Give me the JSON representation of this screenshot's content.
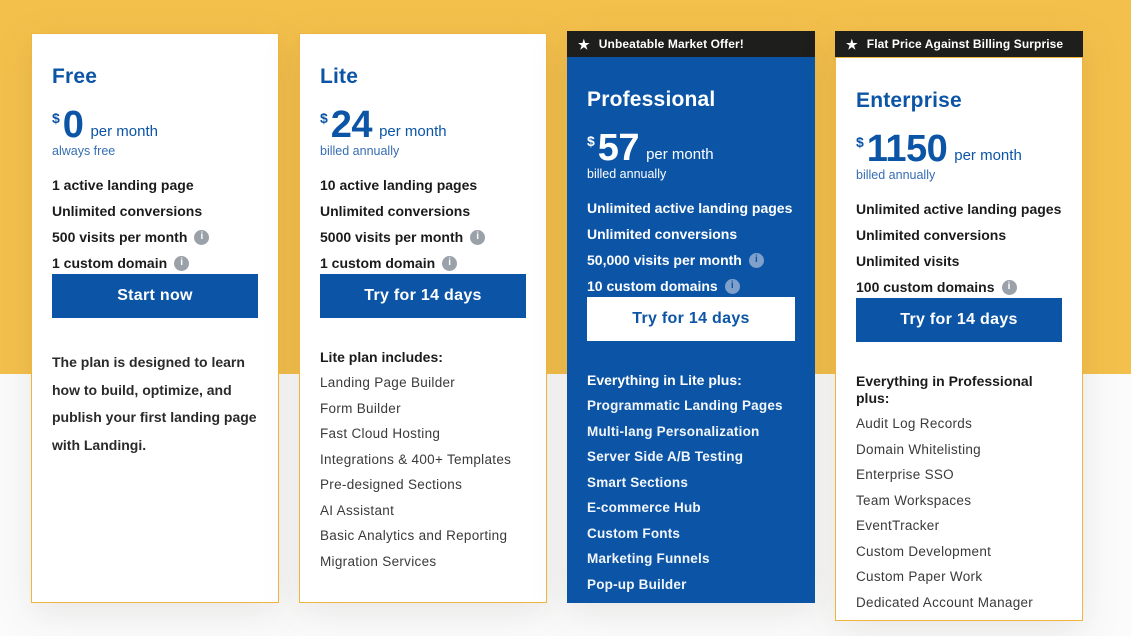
{
  "colors": {
    "band_yellow": "#F4C04C",
    "brand_blue": "#0C55A6",
    "card_border": "#EFB53E",
    "ribbon_bg": "#1E1E1C",
    "note_blue": "#366EB2"
  },
  "plans": [
    {
      "name": "Free",
      "ribbon": "",
      "currency": "$",
      "amount": "0",
      "period": "per month",
      "billing_note": "always free",
      "features": [
        {
          "text": "1 active landing page",
          "info": false
        },
        {
          "text": "Unlimited conversions",
          "info": false
        },
        {
          "text": "500 visits per month",
          "info": true
        },
        {
          "text": "1 custom domain",
          "info": true
        }
      ],
      "cta": "Start now",
      "description": "The plan is designed to learn how to build, optimize, and publish your first landing page with Landingi.",
      "details_heading": "",
      "details": []
    },
    {
      "name": "Lite",
      "ribbon": "",
      "currency": "$",
      "amount": "24",
      "period": "per month",
      "billing_note": "billed annually",
      "features": [
        {
          "text": "10 active landing pages",
          "info": false
        },
        {
          "text": "Unlimited conversions",
          "info": false
        },
        {
          "text": "5000 visits per month",
          "info": true
        },
        {
          "text": "1 custom domain",
          "info": true
        }
      ],
      "cta": "Try for 14 days",
      "description": "",
      "details_heading": "Lite plan includes:",
      "details": [
        "Landing Page Builder",
        "Form Builder",
        "Fast Cloud Hosting",
        "Integrations & 400+ Templates",
        "Pre-designed Sections",
        "AI Assistant",
        "Basic Analytics and Reporting",
        "Migration Services"
      ]
    },
    {
      "name": "Professional",
      "ribbon": "Unbeatable Market Offer!",
      "currency": "$",
      "amount": "57",
      "period": "per month",
      "billing_note": "billed annually",
      "features": [
        {
          "text": "Unlimited active landing pages",
          "info": false
        },
        {
          "text": "Unlimited conversions",
          "info": false
        },
        {
          "text": "50,000 visits per month",
          "info": true
        },
        {
          "text": "10 custom domains",
          "info": true
        }
      ],
      "cta": "Try for 14 days",
      "description": "",
      "details_heading": "Everything in Lite plus:",
      "details": [
        "Programmatic Landing Pages",
        "Multi-lang Personalization",
        "Server Side A/B Testing",
        "Smart Sections",
        "E-commerce Hub",
        "Custom Fonts",
        "Marketing Funnels",
        "Pop-up Builder"
      ]
    },
    {
      "name": "Enterprise",
      "ribbon": "Flat Price Against Billing Surprise",
      "currency": "$",
      "amount": "1150",
      "period": "per month",
      "billing_note": "billed annually",
      "features": [
        {
          "text": "Unlimited active landing pages",
          "info": false
        },
        {
          "text": "Unlimited conversions",
          "info": false
        },
        {
          "text": "Unlimited visits",
          "info": false
        },
        {
          "text": "100 custom domains",
          "info": true
        }
      ],
      "cta": "Try for 14 days",
      "description": "",
      "details_heading": "Everything in Professional plus:",
      "details": [
        "Audit Log Records",
        "Domain Whitelisting",
        "Enterprise SSO",
        "Team Workspaces",
        "EventTracker",
        "Custom Development",
        "Custom Paper Work",
        "Dedicated Account Manager"
      ]
    }
  ]
}
